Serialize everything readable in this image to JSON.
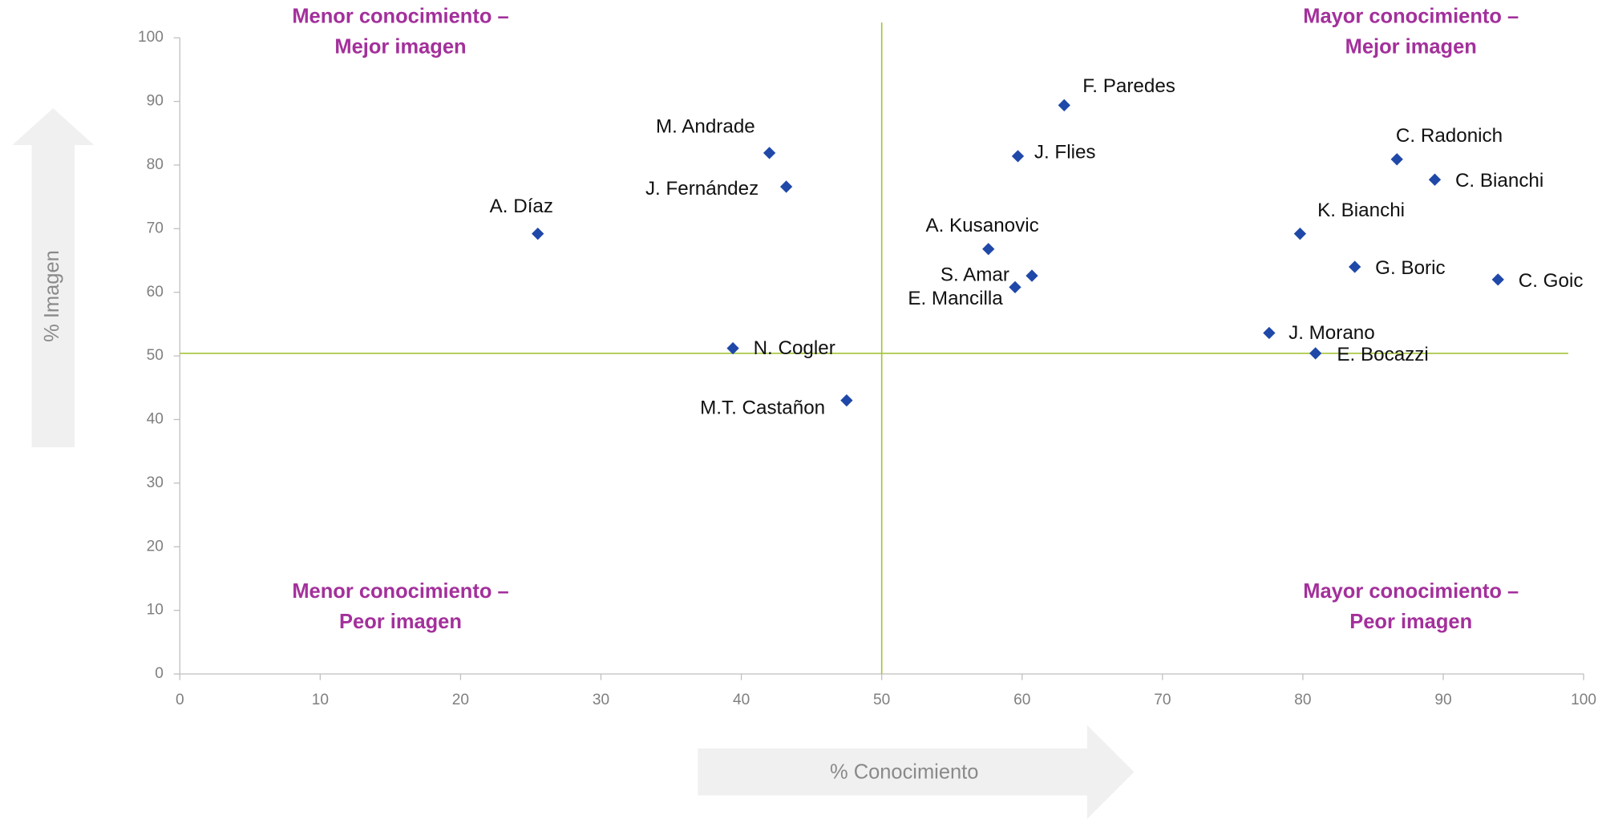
{
  "chart_data": {
    "type": "scatter",
    "x_label": "% Conocimiento",
    "y_label": "% Imagen",
    "color": "#1f48a8",
    "point_labels": [
      "F. Paredes",
      "J. Flies",
      "M. Andrade",
      "J. Fernández",
      "A. Díaz",
      "A. Kusanovic",
      "S. Amar",
      "E. Mancilla",
      "N. Cogler",
      "M.T. Castañon",
      "C. Radonich",
      "C. Bianchi",
      "K. Bianchi",
      "G. Boric",
      "C. Goic",
      "J. Morano",
      "E. Bocazzi"
    ],
    "x": [
      63.0,
      59.7,
      42.0,
      43.2,
      25.5,
      57.6,
      60.7,
      59.5,
      39.4,
      47.5,
      86.7,
      89.4,
      79.8,
      83.7,
      93.9,
      77.6,
      80.9
    ],
    "values": [
      89.4,
      81.4,
      81.9,
      76.6,
      69.2,
      66.8,
      62.6,
      60.8,
      51.2,
      43.0,
      80.9,
      77.7,
      69.2,
      64.0,
      62.0,
      53.6,
      50.4
    ],
    "xlim": [
      0,
      100
    ],
    "ylim": [
      0,
      100
    ],
    "xticks": [
      0,
      10,
      20,
      30,
      40,
      50,
      60,
      70,
      80,
      90,
      100
    ],
    "yticks": [
      0,
      10,
      20,
      30,
      40,
      50,
      60,
      70,
      80,
      90,
      100
    ],
    "reference_lines": {
      "x": 50,
      "y": 50.4
    },
    "reference_color": "#a5c43a",
    "quadrant_labels": [
      [
        "Menor conocimiento –",
        "Mejor imagen"
      ],
      [
        "Mayor conocimiento –",
        "Mejor imagen"
      ],
      [
        "Menor conocimiento –",
        "Peor imagen"
      ],
      [
        "Mayor conocimiento –",
        "Peor imagen"
      ]
    ]
  }
}
